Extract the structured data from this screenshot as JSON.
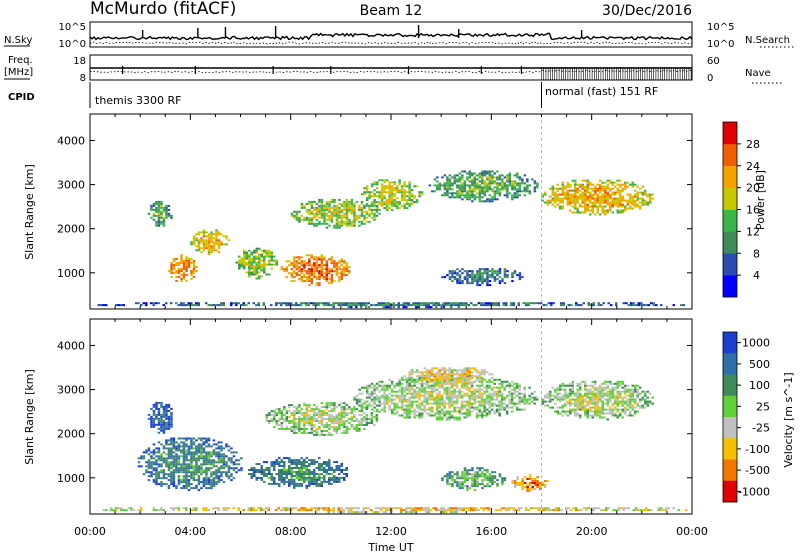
{
  "header": {
    "station": "McMurdo (fitACF)",
    "beam": "Beam 12",
    "date": "30/Dec/2016"
  },
  "top_panels": {
    "nsky_label": "N.Sky",
    "nsky_ticks": [
      "10^5",
      "10^0"
    ],
    "nsearch_label": "N.Search",
    "nsearch_ticks": [
      "10^5",
      "10^0"
    ],
    "freq_label": "Freq.",
    "freq_unit": "[MHz]",
    "freq_ticks": [
      "18",
      "8"
    ],
    "nave_label": "Nave",
    "nave_ticks": [
      "60",
      "0"
    ],
    "cpid_label": "CPID",
    "cpid_modes": [
      {
        "name": "themis 3300 RF",
        "start_hour": 0,
        "end_hour": 18
      },
      {
        "name": "normal (fast) 151 RF",
        "start_hour": 18,
        "end_hour": 24
      }
    ]
  },
  "x_axis": {
    "label": "Time UT",
    "ticks": [
      "00:00",
      "04:00",
      "08:00",
      "12:00",
      "16:00",
      "20:00",
      "00:00"
    ]
  },
  "chart_data": [
    {
      "type": "heatmap",
      "quantity": "Power",
      "ylabel": "Slant Range [km]",
      "yticks": [
        1000,
        2000,
        3000,
        4000
      ],
      "ylim": [
        180,
        4600
      ],
      "xlim_hours": [
        0,
        24
      ],
      "colorbar": {
        "label": "Power [dB]",
        "ticks": [
          "4",
          "8",
          "12",
          "16",
          "20",
          "24",
          "28"
        ],
        "colors": [
          "#0000ff",
          "#2a4db0",
          "#3d8a5a",
          "#39b54a",
          "#c8c800",
          "#f5a300",
          "#f06000",
          "#e00000"
        ]
      },
      "echo_regions": [
        {
          "t0": 2.3,
          "t1": 3.2,
          "r0": 2000,
          "r1": 2600,
          "level": 3
        },
        {
          "t0": 3.1,
          "t1": 4.2,
          "r0": 750,
          "r1": 1400,
          "level": 6
        },
        {
          "t0": 4.0,
          "t1": 5.5,
          "r0": 1400,
          "r1": 1950,
          "level": 5
        },
        {
          "t0": 5.8,
          "t1": 7.4,
          "r0": 850,
          "r1": 1550,
          "level": 4
        },
        {
          "t0": 7.6,
          "t1": 10.3,
          "r0": 700,
          "r1": 1400,
          "level": 6
        },
        {
          "t0": 8.0,
          "t1": 11.5,
          "r0": 2000,
          "r1": 2650,
          "level": 4
        },
        {
          "t0": 10.8,
          "t1": 13.2,
          "r0": 2400,
          "r1": 3100,
          "level": 4
        },
        {
          "t0": 13.5,
          "t1": 17.8,
          "r0": 2600,
          "r1": 3300,
          "level": 3
        },
        {
          "t0": 14.0,
          "t1": 17.2,
          "r0": 700,
          "r1": 1100,
          "level": 2
        },
        {
          "t0": 18.0,
          "t1": 22.4,
          "r0": 2300,
          "r1": 3100,
          "level": 5
        },
        {
          "t0": 0.2,
          "t1": 24.0,
          "r0": 200,
          "r1": 320,
          "level": 2
        }
      ]
    },
    {
      "type": "heatmap",
      "quantity": "Velocity",
      "ylabel": "Slant Range [km]",
      "yticks": [
        1000,
        2000,
        3000,
        4000
      ],
      "ylim": [
        180,
        4600
      ],
      "xlim_hours": [
        0,
        24
      ],
      "colorbar": {
        "label": "Velocity [m s^-1]",
        "ticks": [
          "1000",
          "500",
          "100",
          "25",
          "-25",
          "-100",
          "-500",
          "-1000"
        ],
        "colors": [
          "#1c3fcc",
          "#2f6fa8",
          "#3f8a5a",
          "#5fcf3a",
          "#c0c0c0",
          "#f5c000",
          "#f07800",
          "#e00000"
        ]
      },
      "echo_regions": [
        {
          "t0": 2.3,
          "t1": 3.3,
          "r0": 2000,
          "r1": 2700,
          "level": 1
        },
        {
          "t0": 1.9,
          "t1": 6.0,
          "r0": 700,
          "r1": 1900,
          "level": 2
        },
        {
          "t0": 6.3,
          "t1": 10.3,
          "r0": 750,
          "r1": 1450,
          "level": 2
        },
        {
          "t0": 7.0,
          "t1": 11.5,
          "r0": 1950,
          "r1": 2700,
          "level": 4
        },
        {
          "t0": 10.5,
          "t1": 17.8,
          "r0": 2300,
          "r1": 3300,
          "level": 4
        },
        {
          "t0": 12.5,
          "t1": 16.0,
          "r0": 3100,
          "r1": 3500,
          "level": 5
        },
        {
          "t0": 14.0,
          "t1": 16.5,
          "r0": 700,
          "r1": 1200,
          "level": 3
        },
        {
          "t0": 16.8,
          "t1": 18.2,
          "r0": 680,
          "r1": 1050,
          "level": 6
        },
        {
          "t0": 18.0,
          "t1": 22.4,
          "r0": 2300,
          "r1": 3200,
          "level": 4
        },
        {
          "t0": 0.2,
          "t1": 24.0,
          "r0": 200,
          "r1": 330,
          "level": 5
        }
      ]
    }
  ]
}
